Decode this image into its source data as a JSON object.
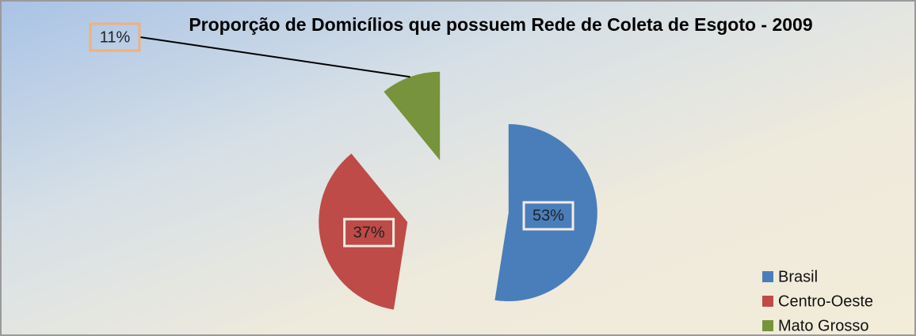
{
  "chart_data": {
    "type": "pie",
    "title": "Proporção de Domicílios que possuem Rede de Coleta de Esgoto - 2009",
    "categories": [
      "Brasil",
      "Centro-Oeste",
      "Mato Grosso"
    ],
    "values": [
      53,
      37,
      11
    ],
    "value_labels": [
      "53%",
      "37%",
      "11%"
    ],
    "colors": [
      "#4a7ebb",
      "#be4b48",
      "#77933c"
    ],
    "legend": "bottom-right"
  }
}
